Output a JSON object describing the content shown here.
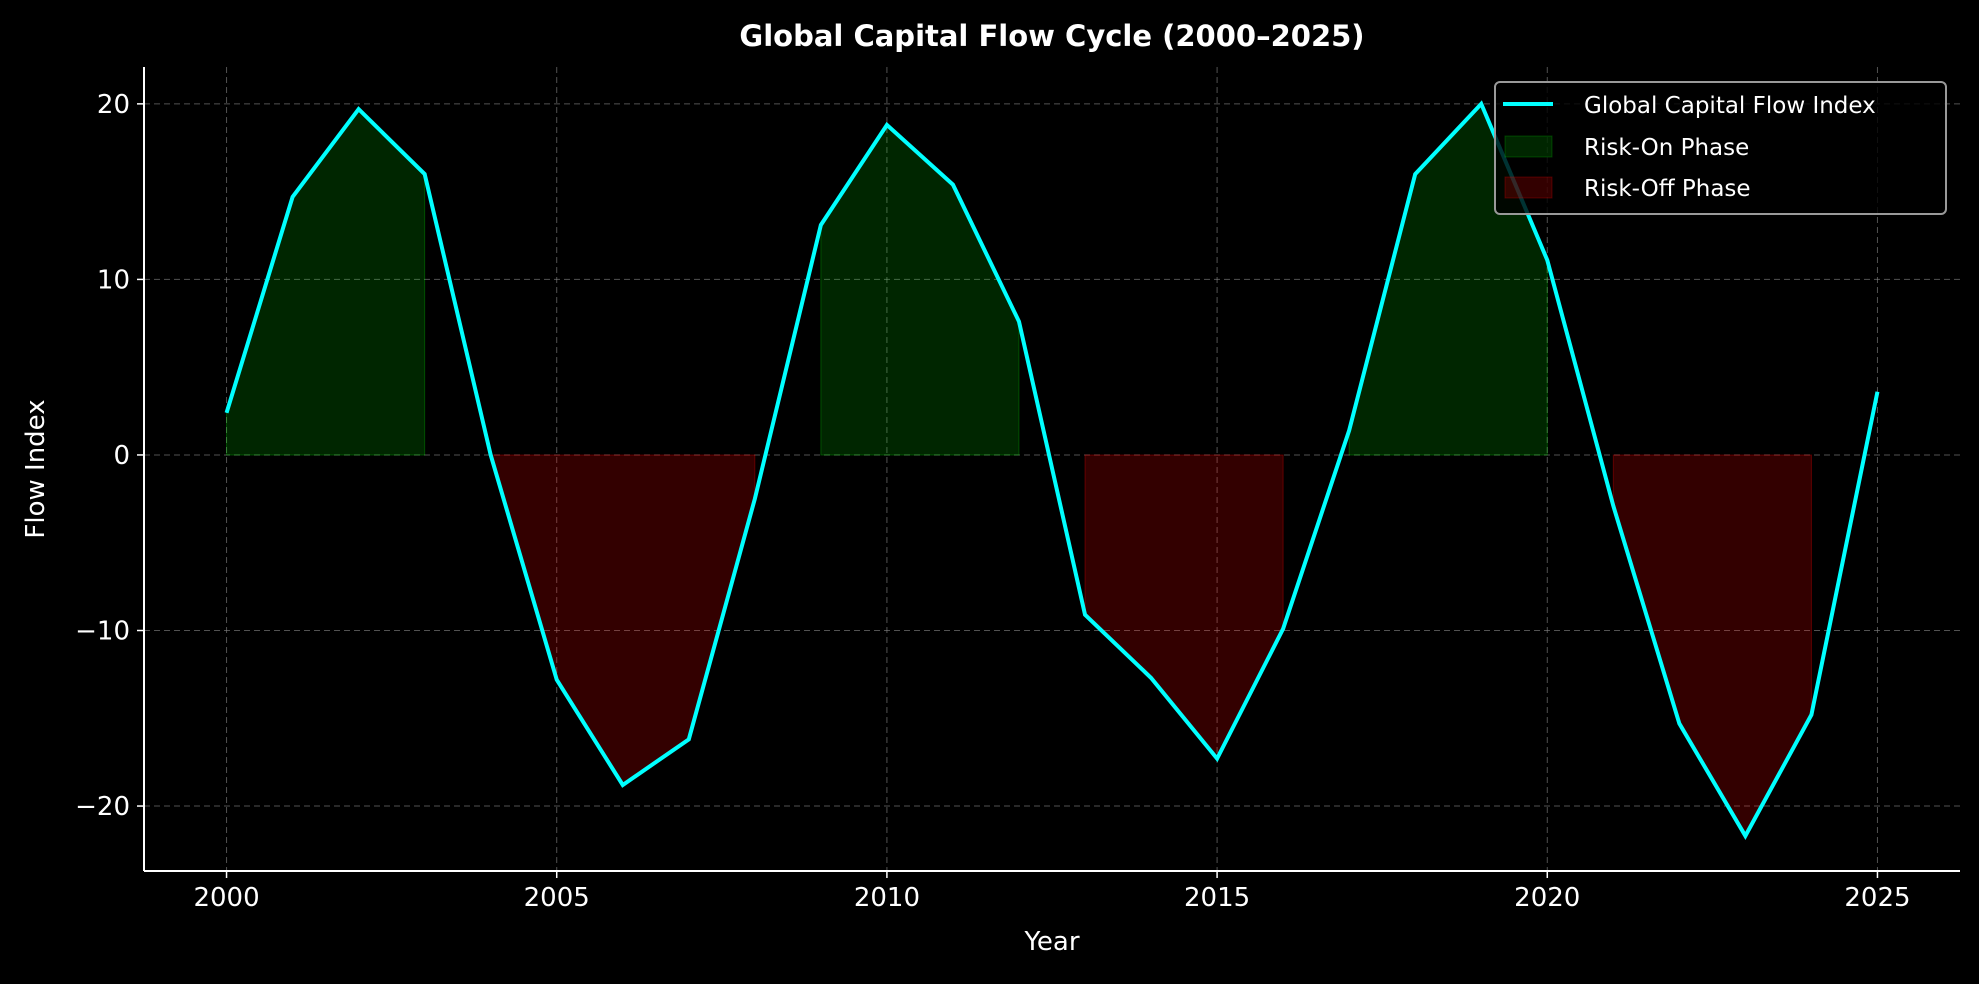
{
  "chart_data": {
    "type": "line",
    "title": "Global Capital Flow Cycle (2000–2025)",
    "xlabel": "Year",
    "ylabel": "Flow Index",
    "xlim": [
      1998.75,
      2026.25
    ],
    "ylim": [
      -23.7,
      22.1
    ],
    "xticks": [
      2000,
      2005,
      2010,
      2015,
      2020,
      2025
    ],
    "yticks": [
      -20,
      -10,
      0,
      10,
      20
    ],
    "ytick_labels": [
      "−20",
      "−10",
      "0",
      "10",
      "20"
    ],
    "grid": true,
    "legend_position": "top-right",
    "colors": {
      "line": "#00ffff",
      "risk_on": "#00ff00",
      "risk_off": "#ff0000",
      "background": "#000000"
    },
    "x": [
      2000,
      2001,
      2002,
      2003,
      2004,
      2005,
      2006,
      2007,
      2008,
      2009,
      2010,
      2011,
      2012,
      2013,
      2014,
      2015,
      2016,
      2017,
      2018,
      2019,
      2020,
      2021,
      2022,
      2023,
      2024,
      2025
    ],
    "series": [
      {
        "name": "Global Capital Flow Index",
        "values": [
          2.4,
          14.7,
          19.7,
          16.0,
          0.0,
          -12.8,
          -18.8,
          -16.2,
          -2.5,
          13.1,
          18.8,
          15.4,
          7.6,
          -9.1,
          -12.7,
          -17.3,
          -9.9,
          1.4,
          16.0,
          20.0,
          11.1,
          -2.9,
          -15.3,
          -21.7,
          -14.8,
          3.6
        ]
      }
    ],
    "phases": [
      {
        "name": "Risk-On Phase",
        "type": "on",
        "spans": [
          [
            2000,
            2003
          ],
          [
            2009,
            2012
          ],
          [
            2017,
            2020
          ]
        ]
      },
      {
        "name": "Risk-Off Phase",
        "type": "off",
        "spans": [
          [
            2004,
            2008
          ],
          [
            2013,
            2016
          ],
          [
            2021,
            2024
          ]
        ]
      }
    ]
  }
}
